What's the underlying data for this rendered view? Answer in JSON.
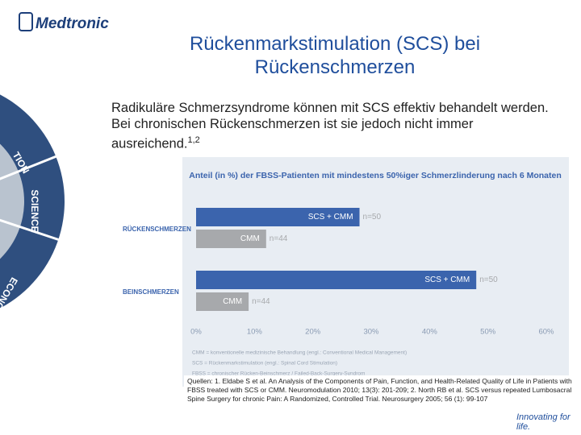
{
  "logo": "Medtronic",
  "tagline": "Innovating for life.",
  "wheel_labels": [
    "TION",
    "SCIENCE",
    "ECONO"
  ],
  "header": {
    "title": "Rückenmarkstimulation (SCS) bei Rückenschmerzen"
  },
  "body": {
    "text": "Radikuläre Schmerzsyndrome können mit SCS effektiv behandelt werden. Bei chronischen Rückenschmerzen ist sie jedoch nicht immer ausreichend.",
    "reference": "1,2"
  },
  "sources": "Quellen: 1. Eldabe S et al. An Analysis of the Components of Pain, Function, and Health-Related Quality of Life in Patients with FBSS treated with SCS or CMM. Neuromodulation 2010; 13(3): 201-209; 2. North RB et al. SCS versus repeated Lumbosacral Spine Surgery for chronic Pain: A Randomized, Controlled Trial. Neurosurgery 2005; 56 (1): 99-107",
  "chart_data": {
    "type": "hbar",
    "title": "Anteil (in %) der FBSS-Patienten mit mindestens 50%iger Schmerzlinderung nach 6 Monaten",
    "categories": [
      "RÜCKENSCHMERZEN",
      "BEINSCHMERZEN"
    ],
    "series": [
      {
        "name": "SCS + CMM",
        "color": "#3b64ad",
        "values": [
          28,
          48
        ],
        "sample_labels": [
          "n=50",
          "n=50"
        ]
      },
      {
        "name": "CMM",
        "color": "#a7a9ac",
        "values": [
          12,
          9
        ],
        "sample_labels": [
          "n=44",
          "n=44"
        ]
      }
    ],
    "xlim": [
      0,
      60
    ],
    "xticks": [
      {
        "value": 0,
        "label": "0%"
      },
      {
        "value": 10,
        "label": "10%"
      },
      {
        "value": 20,
        "label": "20%"
      },
      {
        "value": 30,
        "label": "30%"
      },
      {
        "value": 40,
        "label": "40%"
      },
      {
        "value": 50,
        "label": "50%"
      },
      {
        "value": 60,
        "label": "60%"
      }
    ],
    "grid": false,
    "footnotes": [
      "CMM = konventionelle medizinische Behandlung (engl.: Conventional Medical Management)",
      "SCS = Rückenmarkstimulation (engl.: Spinal Cord Stimulation)",
      "FBSS = chronischer Rücken-Beinschmerz / Failed-Back-Surgery-Syndrom"
    ]
  }
}
